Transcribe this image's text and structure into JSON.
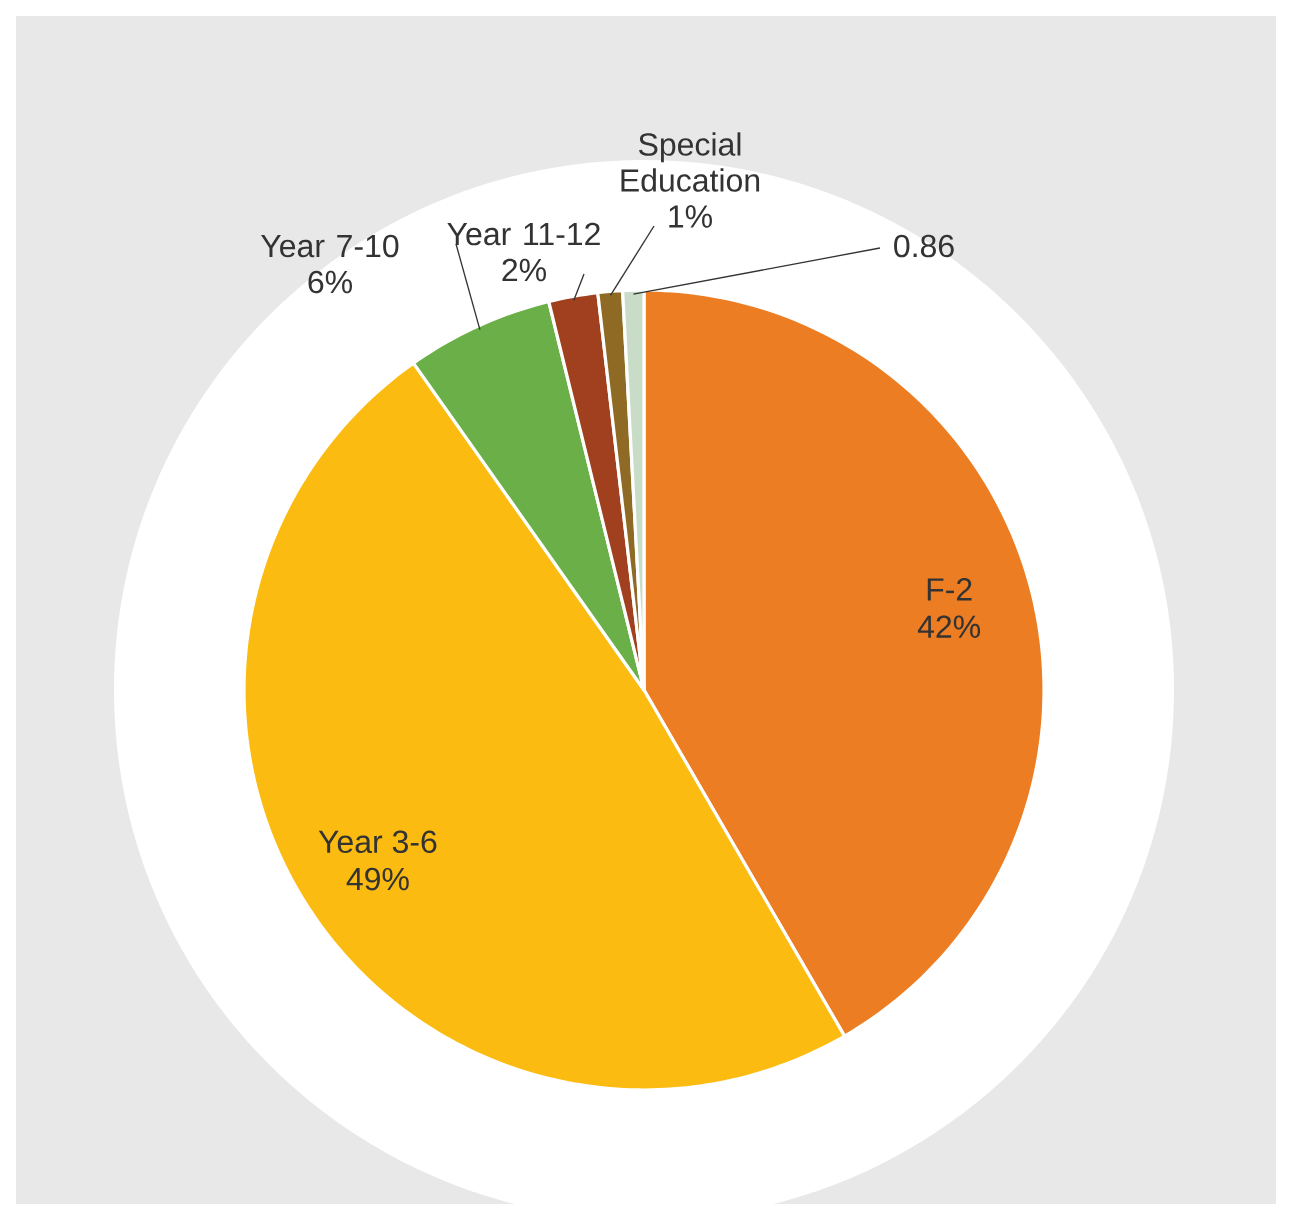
{
  "chart_data": {
    "type": "pie",
    "categories": [
      "F-2",
      "Year 3-6",
      "Year 7-10",
      "Year 11-12",
      "Special Education",
      null
    ],
    "values": [
      42,
      49,
      6,
      2,
      1,
      0.86
    ],
    "value_labels": [
      "42%",
      "49%",
      "6%",
      "2%",
      "1%",
      "0.86"
    ],
    "colors": [
      "#ec7d22",
      "#fbbb10",
      "#6aaf47",
      "#a0401e",
      "#8f6a25",
      "#c9dcc8"
    ]
  }
}
